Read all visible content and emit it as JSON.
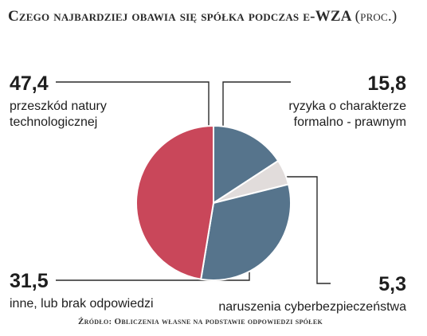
{
  "title": "Czego najbardziej obawia się spółka podczas e-WZA",
  "title_unit": "(proc.)",
  "source": "Źródło: Obliczenia własne na podstawie odpowiedzi spółek",
  "chart_data": {
    "type": "pie",
    "title": "Czego najbardziej obawia się spółka podczas e-WZA",
    "unit": "proc.",
    "slices": [
      {
        "label": "ryzyka o charakterze formalno - prawnym",
        "label_lines": [
          "ryzyka o charakterze",
          "formalno - prawnym"
        ],
        "value": 15.8,
        "value_text": "15,8",
        "color": "#56748c"
      },
      {
        "label": "naruszenia cyberbezpieczeństwa",
        "label_lines": [
          "naruszenia cyberbezpieczeństwa"
        ],
        "value": 5.3,
        "value_text": "5,3",
        "color": "#e1dcdb"
      },
      {
        "label": "inne, lub brak odpowiedzi",
        "label_lines": [
          "inne, lub brak odpowiedzi"
        ],
        "value": 31.5,
        "value_text": "31,5",
        "color": "#56748c"
      },
      {
        "label": "przeszkód natury technologicznej",
        "label_lines": [
          "przeszkód natury",
          "technologicznej"
        ],
        "value": 47.4,
        "value_text": "47,4",
        "color": "#c9475a"
      }
    ]
  }
}
